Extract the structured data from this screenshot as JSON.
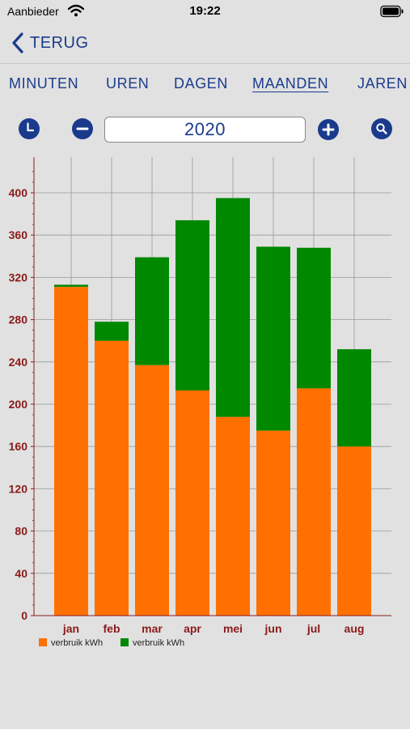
{
  "status_bar": {
    "carrier": "Aanbieder",
    "time": "19:22",
    "icons": [
      "wifi-icon",
      "battery-icon"
    ]
  },
  "nav": {
    "back_label": "TERUG",
    "back_icon": "chevron-left-icon"
  },
  "tabs": [
    {
      "label": "MINUTEN",
      "active": false
    },
    {
      "label": "UREN",
      "active": false
    },
    {
      "label": "DAGEN",
      "active": false
    },
    {
      "label": "MAANDEN",
      "active": true
    },
    {
      "label": "JAREN",
      "active": false
    }
  ],
  "toolbar": {
    "year": "2020",
    "icons": [
      "clock-icon",
      "minus-icon",
      "plus-icon",
      "search-icon"
    ]
  },
  "colors": {
    "accent": "#1a3c8c",
    "series_orange": "#ff7000",
    "series_green": "#008800",
    "tick_label": "#8b1a1a"
  },
  "chart_data": {
    "type": "bar",
    "stacked": true,
    "categories": [
      "jan",
      "feb",
      "mar",
      "apr",
      "mei",
      "jun",
      "jul",
      "aug"
    ],
    "series": [
      {
        "name": "verbruik kWh",
        "color": "#ff7000",
        "values": [
          311,
          260,
          237,
          213,
          188,
          175,
          215,
          160
        ]
      },
      {
        "name": "verbruik kWh",
        "color": "#008800",
        "values": [
          2,
          18,
          102,
          161,
          207,
          174,
          133,
          92
        ]
      }
    ],
    "yticks": [
      0,
      40,
      80,
      120,
      160,
      200,
      240,
      280,
      320,
      360,
      400
    ],
    "ylim": [
      0,
      430
    ],
    "grid": true,
    "legend_position": "bottom-left"
  }
}
